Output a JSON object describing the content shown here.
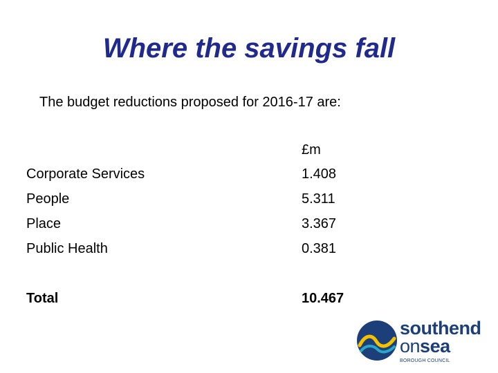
{
  "slide": {
    "title": "Where the savings fall",
    "intro": "The budget reductions proposed for 2016-17 are:"
  },
  "table": {
    "unit_header": "£m",
    "rows": [
      {
        "label": "Corporate Services",
        "value": "1.408"
      },
      {
        "label": "People",
        "value": "5.311"
      },
      {
        "label": "Place",
        "value": "3.367"
      },
      {
        "label": "Public Health",
        "value": "0.381"
      }
    ],
    "total": {
      "label": "Total",
      "value": "10.467"
    }
  },
  "logo": {
    "line1": "southend",
    "line2_a": "on",
    "line2_b": "sea",
    "line3": "BOROUGH COUNCIL"
  },
  "colors": {
    "title": "#1f2a8c",
    "logo_navy": "#1c3f7a",
    "logo_yellow": "#f2c200",
    "logo_teal": "#2aa6c9"
  }
}
